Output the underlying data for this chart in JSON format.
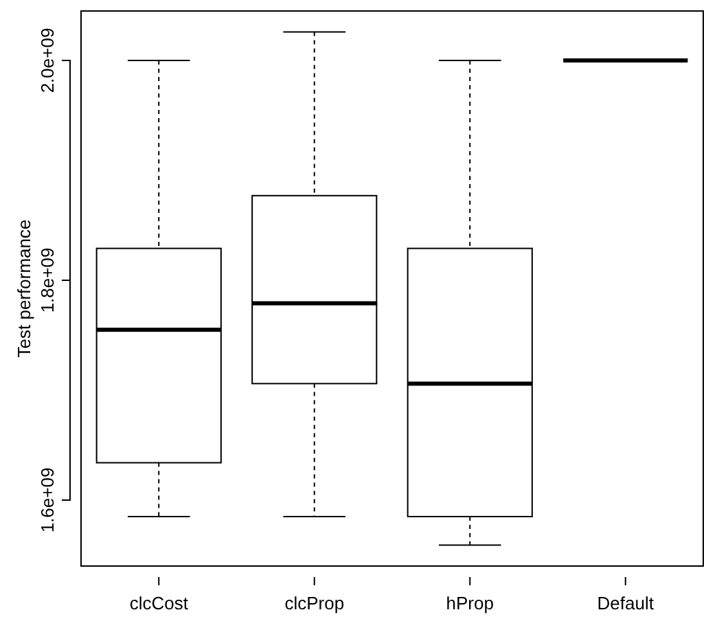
{
  "chart_data": {
    "type": "box",
    "ylabel": "Test performance",
    "categories": [
      "clcCost",
      "clcProp",
      "hProp",
      "Default"
    ],
    "boxes": [
      {
        "low": 1585000000.0,
        "q1": 1634000000.0,
        "median": 1755000000.0,
        "q3": 1829000000.0,
        "high": 2000000000.0
      },
      {
        "low": 1585000000.0,
        "q1": 1706000000.0,
        "median": 1779000000.0,
        "q3": 1877000000.0,
        "high": 2026000000.0
      },
      {
        "low": 1559000000.0,
        "q1": 1585000000.0,
        "median": 1706000000.0,
        "q3": 1829000000.0,
        "high": 2000000000.0
      },
      {
        "low": 2000000000.0,
        "q1": 2000000000.0,
        "median": 2000000000.0,
        "q3": 2000000000.0,
        "high": 2000000000.0
      }
    ],
    "ylim": [
      1540000000.0,
      2045000000.0
    ],
    "yticks": [
      {
        "value": 1600000000.0,
        "label": "1.6e+09"
      },
      {
        "value": 1800000000.0,
        "label": "1.8e+09"
      },
      {
        "value": 2000000000.0,
        "label": "2.0e+09"
      }
    ],
    "grid": false
  }
}
